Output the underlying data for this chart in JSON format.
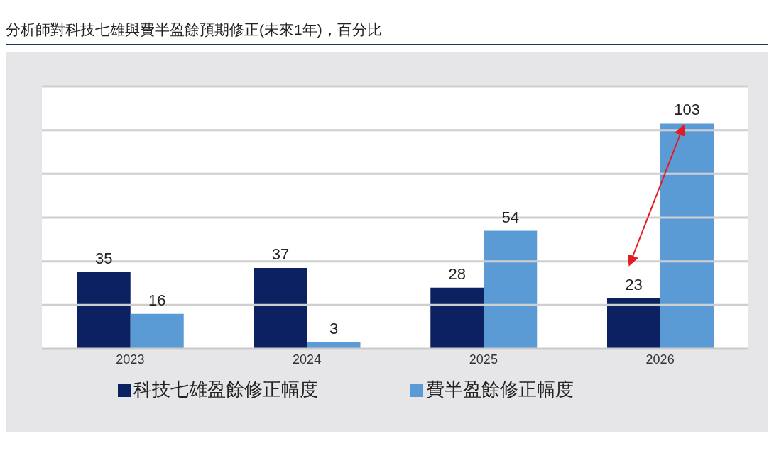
{
  "chart_data": {
    "type": "bar",
    "title": "分析師對科技七雄與費半盈餘預期修正(未來1年)，百分比",
    "categories": [
      "2023",
      "2024",
      "2025",
      "2026"
    ],
    "series": [
      {
        "name": "科技七雄盈餘修正幅度",
        "color": "#0c2161",
        "values": [
          35,
          37,
          28,
          23
        ]
      },
      {
        "name": "費半盈餘修正幅度",
        "color": "#5b9bd5",
        "values": [
          16,
          3,
          54,
          103
        ]
      }
    ],
    "ylim": [
      0,
      120
    ],
    "yticks": [
      {
        "value": 0,
        "label": null
      },
      {
        "value": 20,
        "label": null
      },
      {
        "value": 40,
        "label": null
      },
      {
        "value": 60,
        "label": null
      },
      {
        "value": 80,
        "label": null
      },
      {
        "value": 100,
        "label": null
      },
      {
        "value": 120,
        "label": null
      }
    ],
    "tick_labels": "x",
    "grid": "y",
    "data_labels": true,
    "legend": "bottom"
  }
}
